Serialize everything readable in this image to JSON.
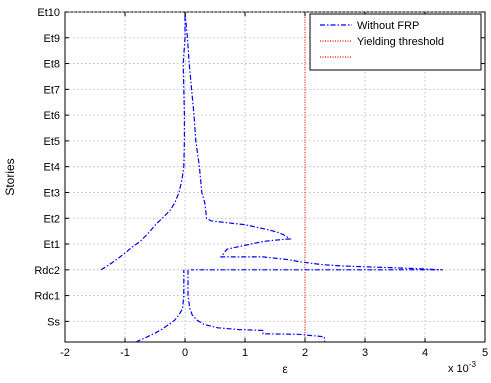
{
  "chart_data": {
    "type": "line",
    "xlabel": "ε",
    "ylabel": "Stories",
    "x_multiplier_label": "x 10",
    "x_multiplier_exponent": "-3",
    "xlim": [
      -2,
      5
    ],
    "xticks": [
      -2,
      -1,
      0,
      1,
      2,
      3,
      4,
      5
    ],
    "y_categories": [
      "Ss",
      "Rdc1",
      "Rdc2",
      "Et1",
      "Et2",
      "Et3",
      "Et4",
      "Et5",
      "Et6",
      "Et7",
      "Et8",
      "Et9",
      "Et10"
    ],
    "ylim": [
      -0.8,
      12
    ],
    "grid": true,
    "legend_position": "top-right",
    "legend": [
      {
        "label": "Without FRP",
        "color": "#0000ff",
        "style": "dash-dot"
      },
      {
        "label": "Yielding threshold",
        "color": "#ff0000",
        "style": "dotted"
      },
      {
        "label": "",
        "color": "#ff0000",
        "style": "dotted"
      }
    ],
    "series": [
      {
        "name": "Without FRP",
        "color": "#0000ff",
        "style": "dash-dot",
        "segments": [
          [
            [
              -0.82,
              -0.8
            ],
            [
              -0.65,
              -0.62
            ],
            [
              -0.5,
              -0.46
            ],
            [
              -0.38,
              -0.3
            ],
            [
              -0.27,
              -0.12
            ],
            [
              -0.17,
              0.05
            ],
            [
              -0.1,
              0.25
            ],
            [
              -0.04,
              0.5
            ],
            [
              -0.02,
              1
            ],
            [
              -0.02,
              2
            ]
          ],
          [
            [
              0.05,
              2
            ],
            [
              0.05,
              1
            ],
            [
              0.08,
              0.5
            ],
            [
              0.12,
              0.25
            ],
            [
              0.2,
              0.05
            ],
            [
              0.32,
              -0.12
            ],
            [
              0.55,
              -0.25
            ],
            [
              0.9,
              -0.32
            ],
            [
              1.3,
              -0.35
            ],
            [
              1.3,
              -0.48
            ],
            [
              1.9,
              -0.5
            ],
            [
              2.32,
              -0.6
            ],
            [
              2.33,
              -0.8
            ]
          ],
          [
            [
              -1.4,
              2
            ],
            [
              -1.28,
              2.17
            ],
            [
              -1.14,
              2.4
            ],
            [
              -1.0,
              2.65
            ],
            [
              -0.87,
              2.9
            ],
            [
              -0.75,
              3.1
            ],
            [
              -0.62,
              3.4
            ],
            [
              -0.47,
              3.8
            ],
            [
              -0.38,
              4
            ],
            [
              -0.25,
              4.3
            ],
            [
              -0.17,
              4.6
            ],
            [
              -0.1,
              5
            ],
            [
              -0.05,
              5.5
            ],
            [
              -0.02,
              6
            ],
            [
              -0.01,
              7
            ],
            [
              -0.01,
              8
            ],
            [
              -0.02,
              9
            ],
            [
              -0.03,
              10
            ],
            [
              0.0,
              11
            ],
            [
              0.0,
              12
            ]
          ],
          [
            [
              0.0,
              12
            ],
            [
              0.04,
              11
            ],
            [
              0.07,
              10
            ],
            [
              0.11,
              9
            ],
            [
              0.15,
              8
            ],
            [
              0.18,
              7
            ],
            [
              0.24,
              6
            ],
            [
              0.28,
              5
            ],
            [
              0.33,
              4.6
            ],
            [
              0.36,
              4
            ],
            [
              0.43,
              3.9
            ],
            [
              0.8,
              3.8
            ],
            [
              1.0,
              3.75
            ],
            [
              1.2,
              3.65
            ],
            [
              1.4,
              3.55
            ],
            [
              1.55,
              3.45
            ],
            [
              1.65,
              3.35
            ],
            [
              1.75,
              3.2
            ],
            [
              1.5,
              3.15
            ],
            [
              1.3,
              3.1
            ],
            [
              1.1,
              3.0
            ],
            [
              0.9,
              2.9
            ],
            [
              0.7,
              2.8
            ],
            [
              0.6,
              2.5
            ],
            [
              1.3,
              2.5
            ],
            [
              1.7,
              2.4
            ],
            [
              1.95,
              2.3
            ],
            [
              2.3,
              2.2
            ],
            [
              2.6,
              2.15
            ],
            [
              3.2,
              2.1
            ],
            [
              3.8,
              2.05
            ],
            [
              4.3,
              2.0
            ],
            [
              0.1,
              2
            ]
          ]
        ]
      }
    ],
    "threshold": {
      "name": "Yielding threshold",
      "x": 2,
      "color": "#ff0000"
    }
  }
}
